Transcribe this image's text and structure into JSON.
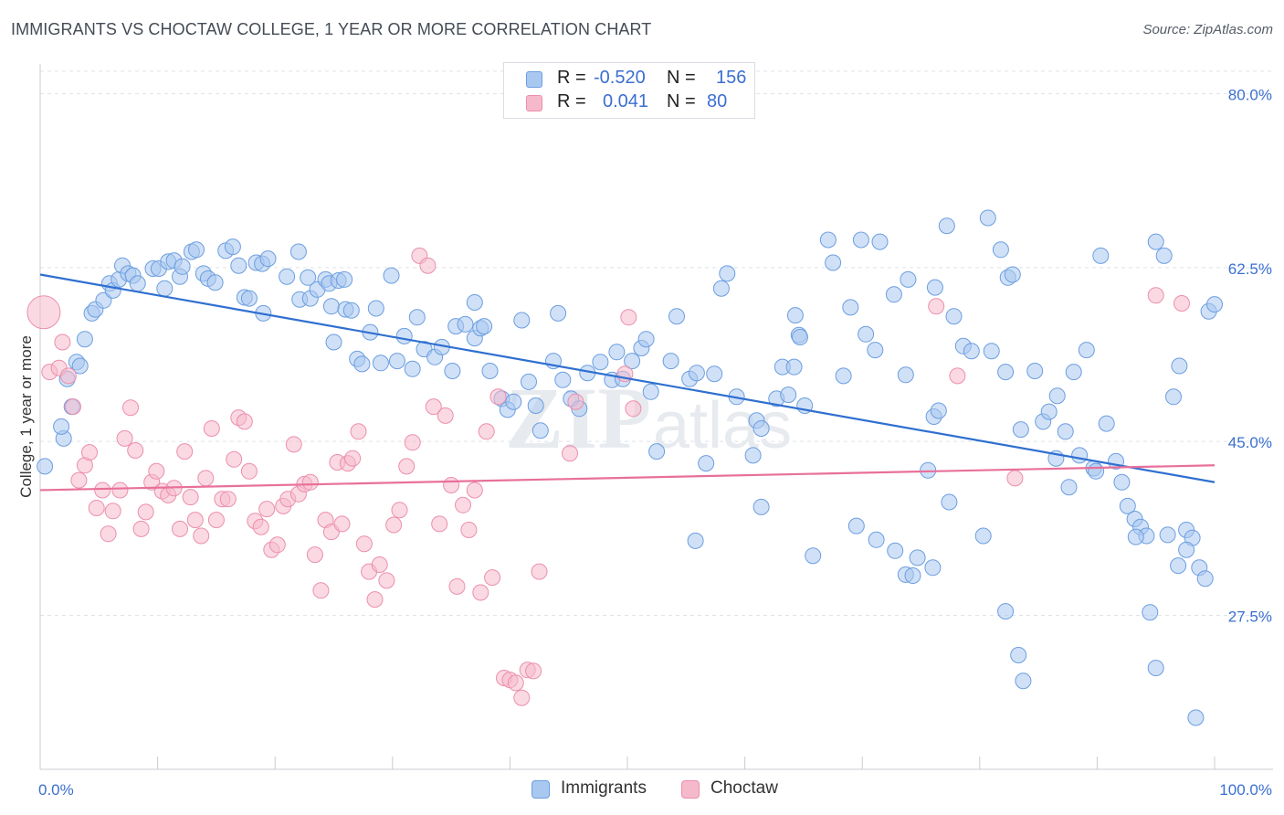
{
  "title": "IMMIGRANTS VS CHOCTAW COLLEGE, 1 YEAR OR MORE CORRELATION CHART",
  "source": "Source: ZipAtlas.com",
  "watermark": {
    "zip": "ZIP",
    "atlas": "atlas"
  },
  "legend_top": {
    "rows": [
      {
        "r_label": "R =",
        "r_value": "-0.520",
        "n_label": "N =",
        "n_value": "156"
      },
      {
        "r_label": "R =",
        "r_value": "0.041",
        "n_label": "N =",
        "n_value": "80"
      }
    ]
  },
  "colors": {
    "immigrants_fill": "#a9c8f0",
    "immigrants_stroke": "#6c9ee0",
    "immigrants_line": "#2f6fd0",
    "choctaw_fill": "#f6b9cc",
    "choctaw_stroke": "#ec8fac",
    "choctaw_line": "#e8709a",
    "tick_label": "#3b6fd0",
    "grid": "#dfe3e8"
  },
  "chart_data": {
    "type": "scatter",
    "title": "IMMIGRANTS VS CHOCTAW COLLEGE, 1 YEAR OR MORE CORRELATION CHART",
    "xlabel": "",
    "ylabel": "College, 1 year or more",
    "xlim": [
      0,
      100
    ],
    "ylim": [
      12,
      83
    ],
    "x_tick_labels": [
      "0.0%",
      "100.0%"
    ],
    "y_ticks": [
      80.0,
      62.5,
      45.0,
      27.5
    ],
    "y_tick_labels": [
      "80.0%",
      "62.5%",
      "45.0%",
      "27.5%"
    ],
    "grid": true,
    "legend_position": "bottom",
    "series": [
      {
        "name": "Immigrants",
        "r": -0.52,
        "n": 156,
        "trend": {
          "x": [
            0,
            100
          ],
          "y": [
            61.8,
            40.9
          ]
        },
        "points": [
          [
            0.4,
            42.5
          ],
          [
            2.0,
            45.3
          ],
          [
            2.7,
            48.5
          ],
          [
            1.8,
            46.5
          ],
          [
            2.3,
            51.3
          ],
          [
            3.1,
            53.0
          ],
          [
            3.4,
            52.6
          ],
          [
            3.8,
            55.3
          ],
          [
            4.4,
            57.9
          ],
          [
            4.7,
            58.3
          ],
          [
            5.4,
            59.2
          ],
          [
            5.9,
            60.9
          ],
          [
            6.2,
            60.2
          ],
          [
            6.7,
            61.3
          ],
          [
            7.0,
            62.7
          ],
          [
            7.5,
            61.9
          ],
          [
            7.9,
            61.7
          ],
          [
            8.3,
            60.9
          ],
          [
            9.6,
            62.4
          ],
          [
            10.1,
            62.4
          ],
          [
            10.6,
            60.4
          ],
          [
            10.9,
            63.1
          ],
          [
            11.4,
            63.2
          ],
          [
            11.9,
            61.6
          ],
          [
            12.1,
            62.6
          ],
          [
            12.9,
            64.1
          ],
          [
            13.3,
            64.3
          ],
          [
            13.9,
            61.9
          ],
          [
            14.3,
            61.4
          ],
          [
            14.9,
            61.0
          ],
          [
            15.8,
            64.2
          ],
          [
            16.4,
            64.6
          ],
          [
            16.9,
            62.7
          ],
          [
            17.4,
            59.5
          ],
          [
            17.8,
            59.4
          ],
          [
            18.4,
            63.0
          ],
          [
            18.9,
            62.9
          ],
          [
            19.4,
            63.4
          ],
          [
            19.0,
            57.9
          ],
          [
            21.0,
            61.6
          ],
          [
            22.0,
            64.1
          ],
          [
            22.1,
            59.3
          ],
          [
            23.0,
            59.4
          ],
          [
            23.6,
            60.3
          ],
          [
            22.8,
            61.5
          ],
          [
            24.3,
            61.3
          ],
          [
            24.8,
            58.6
          ],
          [
            24.6,
            60.9
          ],
          [
            25.4,
            61.2
          ],
          [
            25.9,
            61.3
          ],
          [
            25.0,
            55.0
          ],
          [
            26.0,
            58.3
          ],
          [
            26.5,
            58.2
          ],
          [
            27.0,
            53.3
          ],
          [
            27.4,
            52.8
          ],
          [
            28.1,
            56.0
          ],
          [
            28.6,
            58.4
          ],
          [
            29.0,
            52.9
          ],
          [
            29.9,
            61.7
          ],
          [
            30.4,
            53.1
          ],
          [
            31.0,
            55.6
          ],
          [
            31.7,
            52.3
          ],
          [
            32.1,
            57.5
          ],
          [
            32.7,
            54.3
          ],
          [
            33.6,
            53.5
          ],
          [
            34.2,
            54.5
          ],
          [
            35.1,
            52.1
          ],
          [
            35.4,
            56.6
          ],
          [
            36.2,
            56.8
          ],
          [
            37.0,
            55.4
          ],
          [
            37.5,
            56.4
          ],
          [
            37.8,
            56.6
          ],
          [
            37.0,
            59.0
          ],
          [
            38.3,
            52.1
          ],
          [
            39.3,
            49.3
          ],
          [
            39.8,
            48.2
          ],
          [
            40.3,
            49.0
          ],
          [
            41.0,
            57.2
          ],
          [
            41.6,
            51.0
          ],
          [
            42.2,
            48.6
          ],
          [
            42.6,
            46.1
          ],
          [
            43.7,
            53.1
          ],
          [
            44.1,
            57.9
          ],
          [
            44.5,
            51.2
          ],
          [
            45.2,
            49.3
          ],
          [
            45.9,
            48.3
          ],
          [
            46.6,
            51.9
          ],
          [
            47.7,
            53.0
          ],
          [
            48.7,
            51.2
          ],
          [
            49.1,
            54.0
          ],
          [
            49.6,
            51.3
          ],
          [
            50.4,
            53.1
          ],
          [
            51.2,
            54.4
          ],
          [
            51.6,
            55.3
          ],
          [
            52.0,
            50.0
          ],
          [
            52.5,
            44.0
          ],
          [
            53.7,
            53.1
          ],
          [
            54.2,
            57.6
          ],
          [
            55.3,
            51.3
          ],
          [
            55.9,
            51.9
          ],
          [
            56.7,
            42.8
          ],
          [
            57.4,
            51.8
          ],
          [
            58.0,
            60.4
          ],
          [
            58.5,
            61.9
          ],
          [
            59.3,
            49.5
          ],
          [
            60.7,
            43.6
          ],
          [
            61.0,
            47.1
          ],
          [
            61.4,
            46.3
          ],
          [
            62.7,
            49.3
          ],
          [
            63.2,
            52.5
          ],
          [
            63.7,
            49.7
          ],
          [
            64.2,
            52.5
          ],
          [
            64.6,
            55.7
          ],
          [
            64.3,
            57.7
          ],
          [
            64.7,
            55.5
          ],
          [
            65.1,
            48.6
          ],
          [
            67.1,
            65.3
          ],
          [
            67.5,
            63.0
          ],
          [
            68.4,
            51.6
          ],
          [
            69.0,
            58.5
          ],
          [
            69.9,
            65.3
          ],
          [
            70.3,
            55.8
          ],
          [
            71.1,
            54.2
          ],
          [
            71.5,
            65.1
          ],
          [
            72.7,
            59.8
          ],
          [
            73.9,
            61.3
          ],
          [
            76.2,
            60.5
          ],
          [
            73.7,
            51.7
          ],
          [
            75.6,
            42.1
          ],
          [
            76.1,
            47.5
          ],
          [
            76.5,
            48.1
          ],
          [
            77.2,
            66.7
          ],
          [
            77.8,
            57.6
          ],
          [
            78.6,
            54.6
          ],
          [
            79.3,
            54.1
          ],
          [
            80.7,
            67.5
          ],
          [
            81.0,
            54.1
          ],
          [
            81.8,
            64.3
          ],
          [
            82.2,
            52.0
          ],
          [
            82.4,
            61.5
          ],
          [
            82.8,
            61.8
          ],
          [
            83.5,
            46.2
          ],
          [
            84.7,
            52.1
          ],
          [
            85.4,
            47.0
          ],
          [
            85.9,
            48.0
          ],
          [
            86.5,
            43.3
          ],
          [
            86.6,
            49.6
          ],
          [
            87.3,
            46.0
          ],
          [
            88.0,
            52.0
          ],
          [
            88.5,
            43.6
          ],
          [
            89.1,
            54.2
          ],
          [
            89.7,
            42.3
          ],
          [
            90.3,
            63.7
          ],
          [
            90.8,
            46.8
          ],
          [
            91.6,
            43.0
          ],
          [
            92.1,
            40.9
          ],
          [
            92.6,
            38.5
          ],
          [
            93.2,
            37.2
          ],
          [
            93.7,
            36.4
          ],
          [
            94.2,
            35.5
          ],
          [
            95.0,
            65.1
          ],
          [
            95.7,
            63.7
          ],
          [
            96.5,
            49.5
          ],
          [
            97.0,
            52.6
          ],
          [
            97.6,
            36.1
          ],
          [
            98.1,
            35.3
          ],
          [
            98.7,
            32.3
          ],
          [
            99.5,
            58.1
          ],
          [
            99.2,
            31.2
          ],
          [
            55.8,
            35.0
          ],
          [
            61.4,
            38.4
          ],
          [
            65.8,
            33.5
          ],
          [
            69.5,
            36.5
          ],
          [
            71.2,
            35.1
          ],
          [
            72.8,
            34.0
          ],
          [
            73.7,
            31.6
          ],
          [
            74.3,
            31.5
          ],
          [
            74.7,
            33.3
          ],
          [
            76.0,
            32.3
          ],
          [
            77.4,
            38.9
          ],
          [
            80.3,
            35.5
          ],
          [
            82.2,
            27.9
          ],
          [
            83.3,
            23.5
          ],
          [
            83.7,
            20.9
          ],
          [
            87.6,
            40.4
          ],
          [
            89.9,
            42.0
          ],
          [
            93.3,
            35.4
          ],
          [
            94.5,
            27.8
          ],
          [
            95.0,
            22.2
          ],
          [
            96.0,
            35.6
          ],
          [
            98.4,
            17.2
          ],
          [
            100.0,
            58.8
          ],
          [
            97.6,
            34.1
          ],
          [
            96.9,
            32.5
          ]
        ]
      },
      {
        "name": "Choctaw",
        "r": 0.041,
        "n": 80,
        "trend": {
          "x": [
            0,
            100
          ],
          "y": [
            40.1,
            42.6
          ]
        },
        "points": [
          [
            0.3,
            58.0
          ],
          [
            0.8,
            52.0
          ],
          [
            1.6,
            52.4
          ],
          [
            1.9,
            55.0
          ],
          [
            2.4,
            51.6
          ],
          [
            2.8,
            48.5
          ],
          [
            3.3,
            41.1
          ],
          [
            3.8,
            42.6
          ],
          [
            4.2,
            43.9
          ],
          [
            4.8,
            38.3
          ],
          [
            5.3,
            40.1
          ],
          [
            5.8,
            35.7
          ],
          [
            6.2,
            38.0
          ],
          [
            6.8,
            40.1
          ],
          [
            7.2,
            45.3
          ],
          [
            7.7,
            48.4
          ],
          [
            8.1,
            44.1
          ],
          [
            8.6,
            36.2
          ],
          [
            9.0,
            37.9
          ],
          [
            9.5,
            40.9
          ],
          [
            9.9,
            42.0
          ],
          [
            10.4,
            40.0
          ],
          [
            10.9,
            39.6
          ],
          [
            11.4,
            40.3
          ],
          [
            11.9,
            36.2
          ],
          [
            12.3,
            44.0
          ],
          [
            12.8,
            39.4
          ],
          [
            13.2,
            37.1
          ],
          [
            13.7,
            35.5
          ],
          [
            14.1,
            41.3
          ],
          [
            14.6,
            46.3
          ],
          [
            15.0,
            37.1
          ],
          [
            15.5,
            39.2
          ],
          [
            16.0,
            39.2
          ],
          [
            16.5,
            43.2
          ],
          [
            16.9,
            47.4
          ],
          [
            17.4,
            47.0
          ],
          [
            17.8,
            42.0
          ],
          [
            18.3,
            37.0
          ],
          [
            18.8,
            36.4
          ],
          [
            19.3,
            38.2
          ],
          [
            19.7,
            34.1
          ],
          [
            20.2,
            34.6
          ],
          [
            20.7,
            38.5
          ],
          [
            21.1,
            39.2
          ],
          [
            21.6,
            44.7
          ],
          [
            22.0,
            39.7
          ],
          [
            22.5,
            40.7
          ],
          [
            23.0,
            40.9
          ],
          [
            23.4,
            33.6
          ],
          [
            23.9,
            30.0
          ],
          [
            24.3,
            37.1
          ],
          [
            24.8,
            35.9
          ],
          [
            25.3,
            42.9
          ],
          [
            25.7,
            36.7
          ],
          [
            26.2,
            42.8
          ],
          [
            26.6,
            43.3
          ],
          [
            27.1,
            46.0
          ],
          [
            27.6,
            34.7
          ],
          [
            28.0,
            31.9
          ],
          [
            28.5,
            29.1
          ],
          [
            28.9,
            32.6
          ],
          [
            29.5,
            31.0
          ],
          [
            30.1,
            36.6
          ],
          [
            30.6,
            38.1
          ],
          [
            31.2,
            42.5
          ],
          [
            31.7,
            44.9
          ],
          [
            32.3,
            63.7
          ],
          [
            33.0,
            62.7
          ],
          [
            33.5,
            48.5
          ],
          [
            34.0,
            36.7
          ],
          [
            34.5,
            47.6
          ],
          [
            35.0,
            40.6
          ],
          [
            35.5,
            30.4
          ],
          [
            36.0,
            38.6
          ],
          [
            36.5,
            36.1
          ],
          [
            37.0,
            40.1
          ],
          [
            37.5,
            29.8
          ],
          [
            38.0,
            46.0
          ],
          [
            38.5,
            31.3
          ],
          [
            39.0,
            49.5
          ],
          [
            39.5,
            21.2
          ],
          [
            40.0,
            21.0
          ],
          [
            40.5,
            20.7
          ],
          [
            41.0,
            19.2
          ],
          [
            41.5,
            22.0
          ],
          [
            42.0,
            21.9
          ],
          [
            42.5,
            31.9
          ],
          [
            45.1,
            43.8
          ],
          [
            45.6,
            49.0
          ],
          [
            49.8,
            51.8
          ],
          [
            50.1,
            57.5
          ],
          [
            50.5,
            48.3
          ],
          [
            76.3,
            58.6
          ],
          [
            78.1,
            51.6
          ],
          [
            83.0,
            41.3
          ],
          [
            95.0,
            59.7
          ],
          [
            97.2,
            58.9
          ]
        ]
      }
    ]
  }
}
